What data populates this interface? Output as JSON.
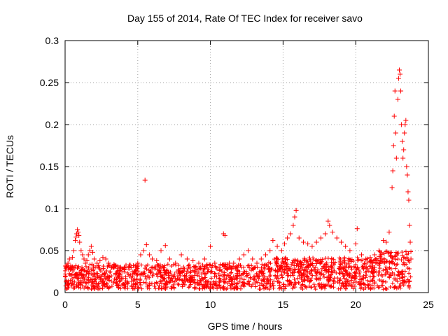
{
  "chart_data": {
    "type": "scatter",
    "title": "Day 155 of 2014, Rate Of TEC Index for receiver savo",
    "xlabel": "GPS time / hours",
    "ylabel": "ROTI / TECUs",
    "xlim": [
      0,
      25
    ],
    "ylim": [
      0,
      0.3
    ],
    "xticks": [
      0,
      5,
      10,
      15,
      20,
      25
    ],
    "yticks": [
      0,
      0.05,
      0.1,
      0.15,
      0.2,
      0.25,
      0.3
    ],
    "xtick_labels": [
      "0",
      "5",
      "10",
      "15",
      "20",
      "25"
    ],
    "ytick_labels": [
      "0",
      "0.05",
      "0.1",
      "0.15",
      "0.2",
      "0.25",
      "0.3"
    ],
    "grid": true,
    "marker": "+",
    "color": "#ff0000",
    "series": [
      {
        "name": "ROTI",
        "points": [
          [
            0.1,
            0.03
          ],
          [
            0.2,
            0.035
          ],
          [
            0.3,
            0.04
          ],
          [
            0.4,
            0.03
          ],
          [
            0.5,
            0.042
          ],
          [
            0.6,
            0.05
          ],
          [
            0.7,
            0.062
          ],
          [
            0.75,
            0.066
          ],
          [
            0.8,
            0.07
          ],
          [
            0.85,
            0.075
          ],
          [
            0.9,
            0.072
          ],
          [
            0.95,
            0.068
          ],
          [
            1.0,
            0.06
          ],
          [
            1.1,
            0.05
          ],
          [
            1.2,
            0.045
          ],
          [
            1.3,
            0.04
          ],
          [
            1.4,
            0.035
          ],
          [
            1.5,
            0.038
          ],
          [
            1.6,
            0.045
          ],
          [
            1.7,
            0.05
          ],
          [
            1.8,
            0.055
          ],
          [
            1.9,
            0.048
          ],
          [
            2.0,
            0.04
          ],
          [
            2.2,
            0.035
          ],
          [
            2.4,
            0.038
          ],
          [
            2.6,
            0.042
          ],
          [
            2.8,
            0.04
          ],
          [
            3.0,
            0.035
          ],
          [
            3.2,
            0.03
          ],
          [
            3.5,
            0.032
          ],
          [
            3.8,
            0.03
          ],
          [
            4.1,
            0.028
          ],
          [
            4.4,
            0.03
          ],
          [
            4.7,
            0.032
          ],
          [
            5.0,
            0.035
          ],
          [
            5.2,
            0.045
          ],
          [
            5.4,
            0.05
          ],
          [
            5.5,
            0.134
          ],
          [
            5.6,
            0.057
          ],
          [
            5.8,
            0.045
          ],
          [
            6.0,
            0.04
          ],
          [
            6.3,
            0.038
          ],
          [
            6.6,
            0.05
          ],
          [
            6.9,
            0.056
          ],
          [
            7.2,
            0.04
          ],
          [
            7.6,
            0.035
          ],
          [
            8.0,
            0.045
          ],
          [
            8.4,
            0.04
          ],
          [
            8.8,
            0.038
          ],
          [
            9.2,
            0.035
          ],
          [
            9.6,
            0.04
          ],
          [
            10.0,
            0.055
          ],
          [
            10.3,
            0.035
          ],
          [
            10.6,
            0.03
          ],
          [
            10.9,
            0.07
          ],
          [
            11.0,
            0.068
          ],
          [
            11.3,
            0.035
          ],
          [
            11.6,
            0.035
          ],
          [
            12.0,
            0.04
          ],
          [
            12.3,
            0.045
          ],
          [
            12.6,
            0.05
          ],
          [
            12.9,
            0.04
          ],
          [
            13.2,
            0.035
          ],
          [
            13.5,
            0.04
          ],
          [
            13.8,
            0.045
          ],
          [
            14.1,
            0.05
          ],
          [
            14.3,
            0.062
          ],
          [
            14.6,
            0.055
          ],
          [
            14.9,
            0.05
          ],
          [
            15.1,
            0.058
          ],
          [
            15.3,
            0.065
          ],
          [
            15.5,
            0.07
          ],
          [
            15.7,
            0.08
          ],
          [
            15.8,
            0.09
          ],
          [
            15.9,
            0.098
          ],
          [
            16.1,
            0.065
          ],
          [
            16.4,
            0.06
          ],
          [
            16.7,
            0.058
          ],
          [
            17.0,
            0.055
          ],
          [
            17.3,
            0.06
          ],
          [
            17.6,
            0.065
          ],
          [
            17.9,
            0.07
          ],
          [
            18.1,
            0.085
          ],
          [
            18.2,
            0.08
          ],
          [
            18.4,
            0.072
          ],
          [
            18.7,
            0.065
          ],
          [
            19.0,
            0.06
          ],
          [
            19.3,
            0.055
          ],
          [
            19.6,
            0.05
          ],
          [
            20.0,
            0.058
          ],
          [
            20.1,
            0.076
          ],
          [
            20.4,
            0.045
          ],
          [
            20.7,
            0.04
          ],
          [
            21.0,
            0.042
          ],
          [
            21.3,
            0.045
          ],
          [
            21.6,
            0.05
          ],
          [
            21.9,
            0.062
          ],
          [
            22.1,
            0.06
          ],
          [
            22.3,
            0.072
          ],
          [
            22.5,
            0.125
          ],
          [
            22.55,
            0.145
          ],
          [
            22.6,
            0.175
          ],
          [
            22.65,
            0.21
          ],
          [
            22.7,
            0.24
          ],
          [
            22.75,
            0.19
          ],
          [
            22.8,
            0.16
          ],
          [
            22.9,
            0.23
          ],
          [
            22.95,
            0.255
          ],
          [
            23.0,
            0.265
          ],
          [
            23.05,
            0.26
          ],
          [
            23.1,
            0.24
          ],
          [
            23.15,
            0.2
          ],
          [
            23.2,
            0.18
          ],
          [
            23.25,
            0.16
          ],
          [
            23.3,
            0.17
          ],
          [
            23.35,
            0.19
          ],
          [
            23.4,
            0.2
          ],
          [
            23.45,
            0.205
          ],
          [
            23.5,
            0.15
          ],
          [
            23.55,
            0.14
          ],
          [
            23.6,
            0.12
          ],
          [
            23.65,
            0.11
          ],
          [
            23.7,
            0.08
          ],
          [
            23.75,
            0.06
          ],
          [
            23.8,
            0.04
          ]
        ]
      }
    ]
  }
}
